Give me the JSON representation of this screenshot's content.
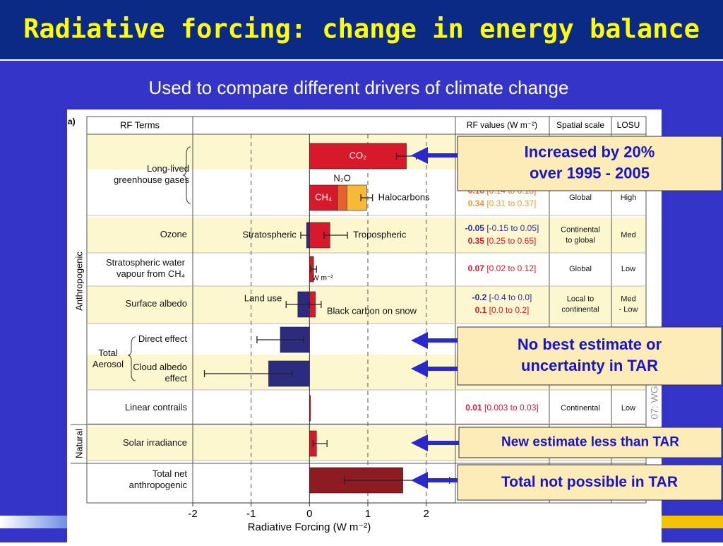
{
  "slide": {
    "title": "Radiative forcing: change in energy balance",
    "subtitle": "Used to compare different drivers of climate change"
  },
  "callouts": [
    {
      "lines": [
        "Increased by 20%",
        "over 1995 - 2005"
      ]
    },
    {
      "lines": [
        "No best estimate or",
        "uncertainty in TAR"
      ]
    },
    {
      "lines": [
        "New estimate less than TAR"
      ]
    },
    {
      "lines": [
        "Total not possible in TAR"
      ]
    }
  ],
  "chart_data": {
    "type": "bar",
    "panel": "a)",
    "headers": {
      "terms": "RF Terms",
      "values": "RF values (W m⁻²)",
      "scale": "Spatial scale",
      "losu": "LOSU"
    },
    "domains": [
      "Anthropogenic",
      "Natural"
    ],
    "aerosol_group": [
      "Total",
      "Aerosol"
    ],
    "xlabel": "Radiative Forcing  (W m⁻²)",
    "xlim": [
      -2,
      2.5
    ],
    "xticks": [
      -2,
      -1,
      0,
      1,
      2
    ],
    "grid": true,
    "annotation": "W m⁻²",
    "side_text": "07: WG",
    "rows": [
      {
        "term": [
          "Long-lived",
          "greenhouse gases"
        ],
        "shaded": true,
        "bars": [
          {
            "name": "CO₂",
            "value": 1.66,
            "color": "#d7192b",
            "range": [
              1.49,
              1.83
            ]
          }
        ]
      },
      {
        "shaded": false,
        "bars": [
          {
            "name": "CH₄",
            "value": 0.48,
            "color": "#d7192b"
          },
          {
            "name": "N₂O",
            "value": 0.16,
            "color": "#e8612c"
          },
          {
            "name": "Halocarbons",
            "value": 0.34,
            "color": "#f6b93a"
          }
        ],
        "range": [
          0.88,
          1.08
        ],
        "rf": [
          {
            "best": "0.16",
            "range": "[0.14 to 0.18]",
            "color": "#e8612c"
          },
          {
            "best": "0.34",
            "range": "[0.31 to 0.37]",
            "color": "#f0a020"
          }
        ],
        "scale": [
          "Global"
        ],
        "losu": [
          "High"
        ]
      },
      {
        "term": [
          "Ozone"
        ],
        "shaded": true,
        "bars": [
          {
            "name": "Stratospheric",
            "value": -0.05,
            "color": "#2b2b7f",
            "range": [
              -0.15,
              0.05
            ]
          },
          {
            "name": "Tropospheric",
            "value": 0.35,
            "color": "#d7192b",
            "range": [
              0.25,
              0.65
            ]
          }
        ],
        "rf": [
          {
            "best": "-0.05",
            "range": "[-0.15 to 0.05]",
            "color": "#2b2b9f"
          },
          {
            "best": "0.35",
            "range": "[0.25 to 0.65]",
            "color": "#d7192b"
          }
        ],
        "scale": [
          "Continental",
          "to global"
        ],
        "losu": [
          "Med"
        ]
      },
      {
        "term": [
          "Stratospheric water",
          "vapour from CH₄"
        ],
        "shaded": false,
        "bars": [
          {
            "value": 0.07,
            "color": "#d7192b",
            "range": [
              0.02,
              0.12
            ]
          }
        ],
        "rf": [
          {
            "best": "0.07",
            "range": "[0.02 to 0.12]",
            "color": "#d7192b"
          }
        ],
        "scale": [
          "Global"
        ],
        "losu": [
          "Low"
        ]
      },
      {
        "term": [
          "Surface albedo"
        ],
        "shaded": true,
        "bars": [
          {
            "name": "Land use",
            "value": -0.2,
            "color": "#2b2b7f",
            "range": [
              -0.4,
              0.0
            ]
          },
          {
            "name": "Black carbon on snow",
            "value": 0.1,
            "color": "#d7192b",
            "range": [
              0.0,
              0.2
            ]
          }
        ],
        "rf": [
          {
            "best": "-0.2",
            "range": "[-0.4 to 0.0]",
            "color": "#2b2b9f"
          },
          {
            "best": "0.1",
            "range": "[0.0 to 0.2]",
            "color": "#d7192b"
          }
        ],
        "scale": [
          "Local to",
          "continental"
        ],
        "losu": [
          "Med",
          "- Low"
        ]
      },
      {
        "term": [
          "Direct effect"
        ],
        "shaded": false,
        "bars": [
          {
            "value": -0.5,
            "color": "#2b2b7f",
            "range": [
              -0.9,
              -0.1
            ]
          }
        ]
      },
      {
        "term": [
          "Cloud albedo",
          "effect"
        ],
        "shaded": true,
        "bars": [
          {
            "value": -0.7,
            "color": "#2b2b7f",
            "range": [
              -1.8,
              -0.3
            ]
          }
        ]
      },
      {
        "term": [
          "Linear contrails"
        ],
        "shaded": false,
        "bars": [
          {
            "value": 0.01,
            "color": "#d7192b"
          }
        ],
        "rf": [
          {
            "best": "0.01",
            "range": "[0.003 to 0.03]",
            "color": "#d7192b"
          }
        ],
        "scale": [
          "Continental"
        ],
        "losu": [
          "Low"
        ]
      },
      {
        "term": [
          "Solar irradiance"
        ],
        "shaded": true,
        "bars": [
          {
            "value": 0.12,
            "color": "#d7192b",
            "range": [
              0.06,
              0.3
            ]
          }
        ]
      },
      {
        "term": [
          "Total net",
          "anthropogenic"
        ],
        "shaded": false,
        "bars": [
          {
            "value": 1.6,
            "color": "#8e1a22",
            "range": [
              0.6,
              2.4
            ]
          }
        ]
      }
    ]
  }
}
